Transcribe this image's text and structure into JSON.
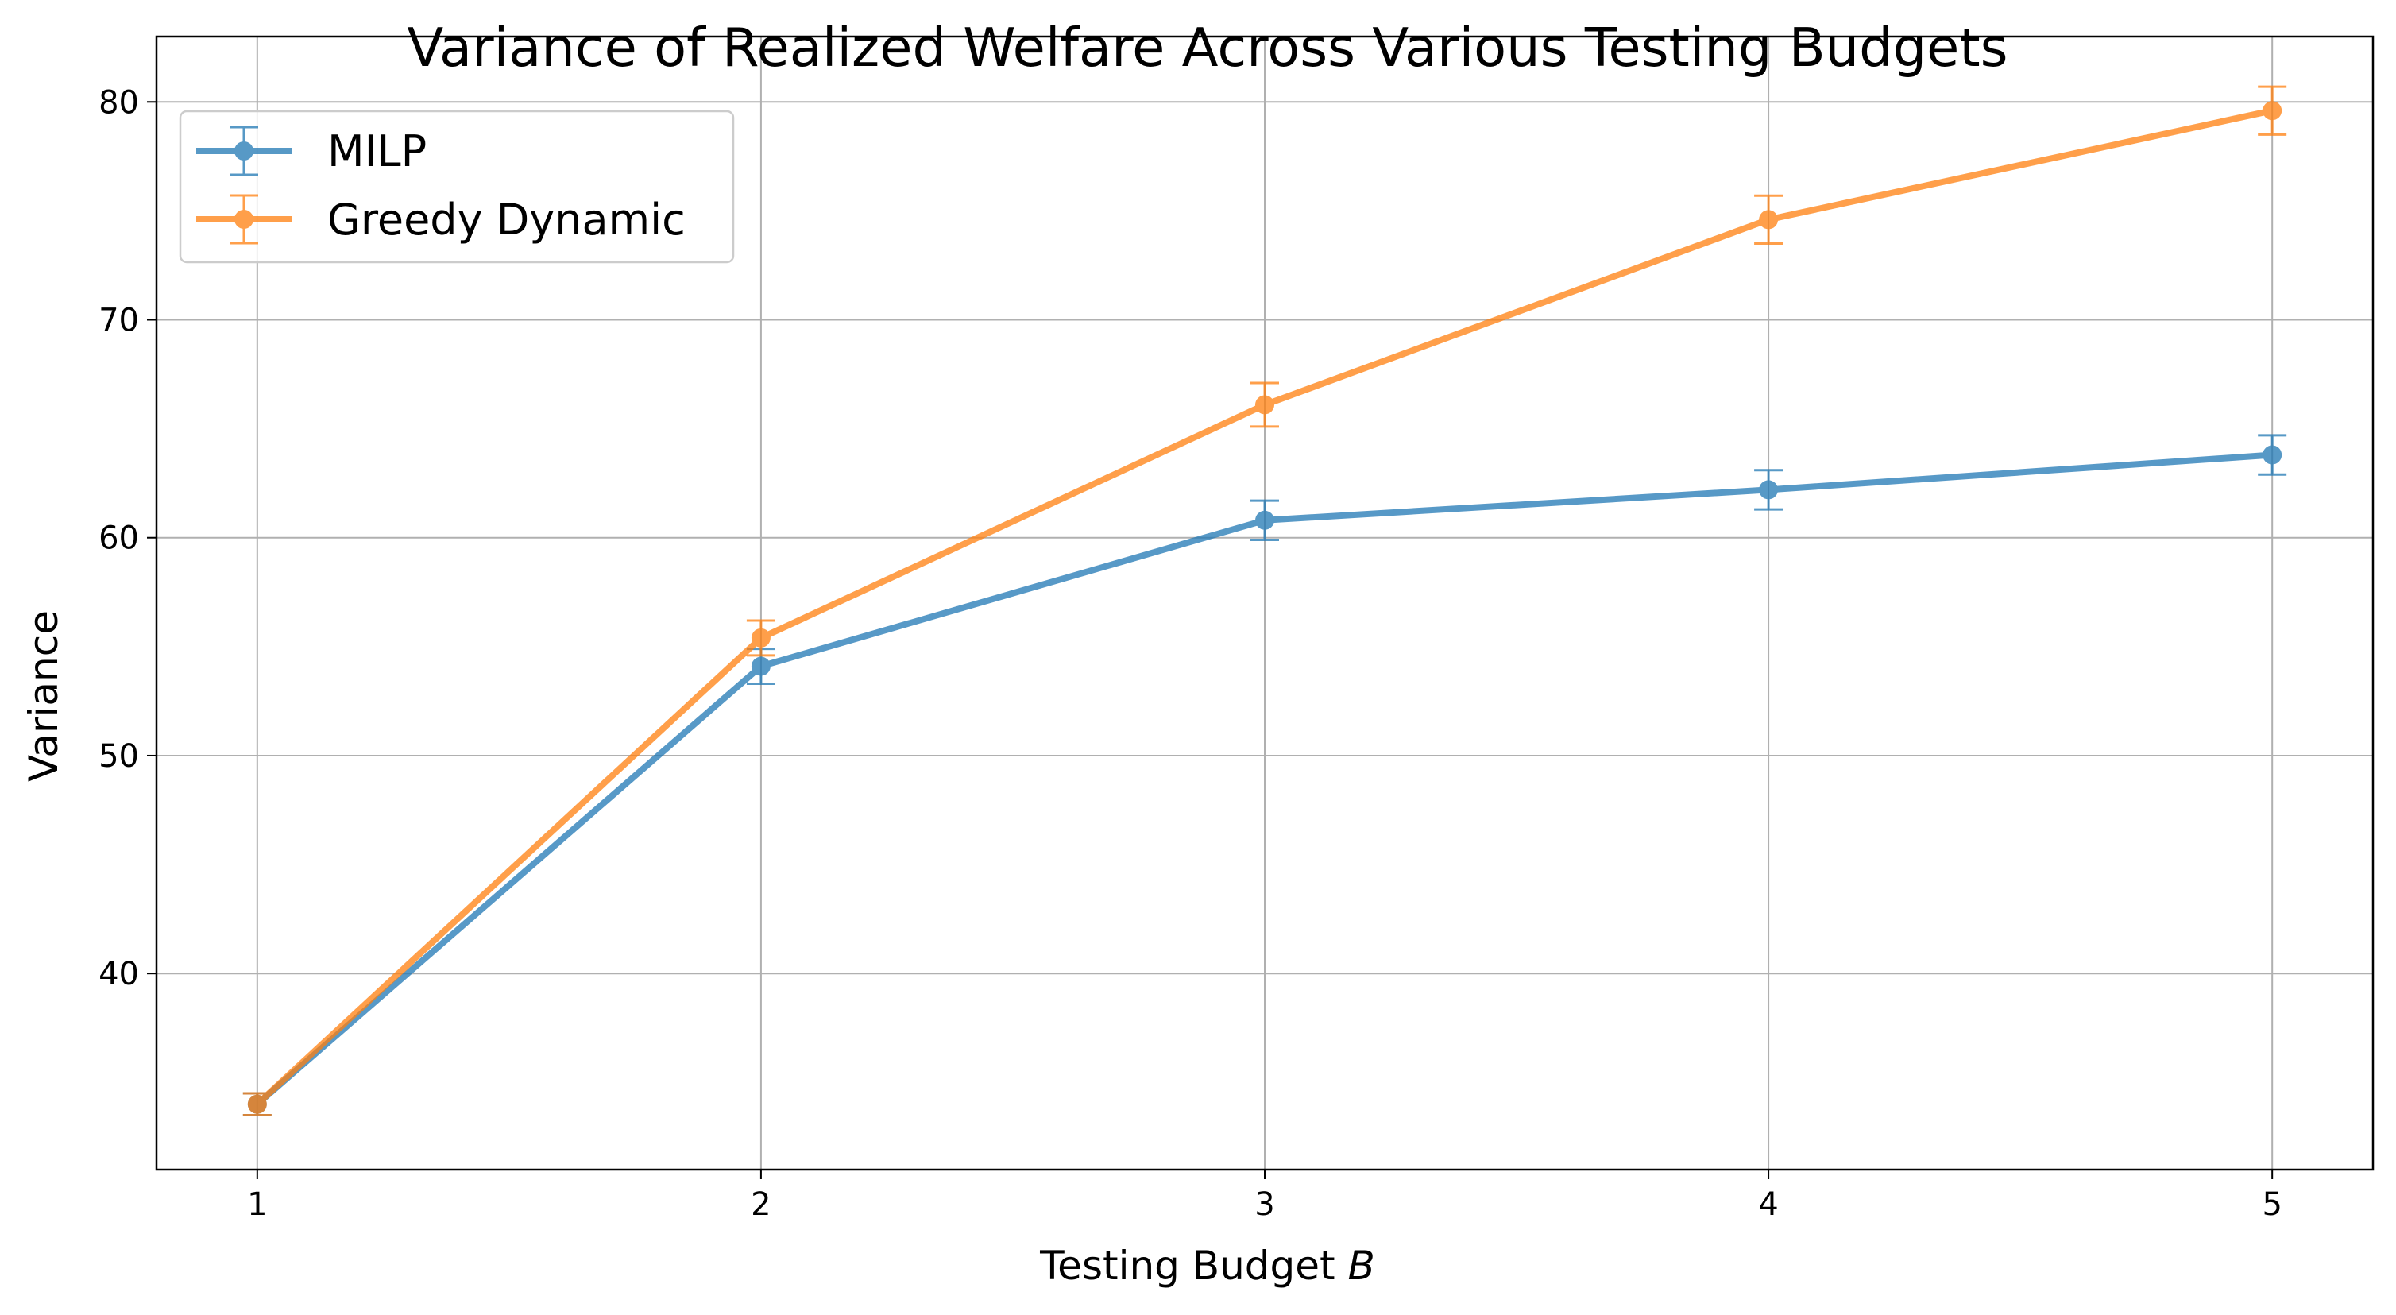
{
  "chart_data": {
    "type": "line",
    "title": "Variance of Realized Welfare Across Various Testing Budgets",
    "xlabel_main": "Testing Budget ",
    "xlabel_var": "B",
    "ylabel": "Variance",
    "x": [
      1,
      2,
      3,
      4,
      5
    ],
    "x_tick_labels": [
      "1",
      "2",
      "3",
      "4",
      "5"
    ],
    "y_ticks": [
      40,
      50,
      60,
      70,
      80
    ],
    "y_tick_labels": [
      "40",
      "50",
      "60",
      "70",
      "80"
    ],
    "xlim": [
      0.8,
      5.2
    ],
    "ylim": [
      31.0,
      83.0
    ],
    "grid": true,
    "legend_position": "upper-left",
    "series": [
      {
        "name": "MILP",
        "color": "#1f77b4",
        "values": [
          34.0,
          54.1,
          60.8,
          62.2,
          63.8
        ],
        "errors": [
          0.5,
          0.8,
          0.9,
          0.9,
          0.9
        ]
      },
      {
        "name": "Greedy Dynamic",
        "color": "#ff7f0e",
        "values": [
          34.0,
          55.4,
          66.1,
          74.6,
          79.6
        ],
        "errors": [
          0.5,
          0.8,
          1.0,
          1.1,
          1.1
        ]
      }
    ]
  }
}
